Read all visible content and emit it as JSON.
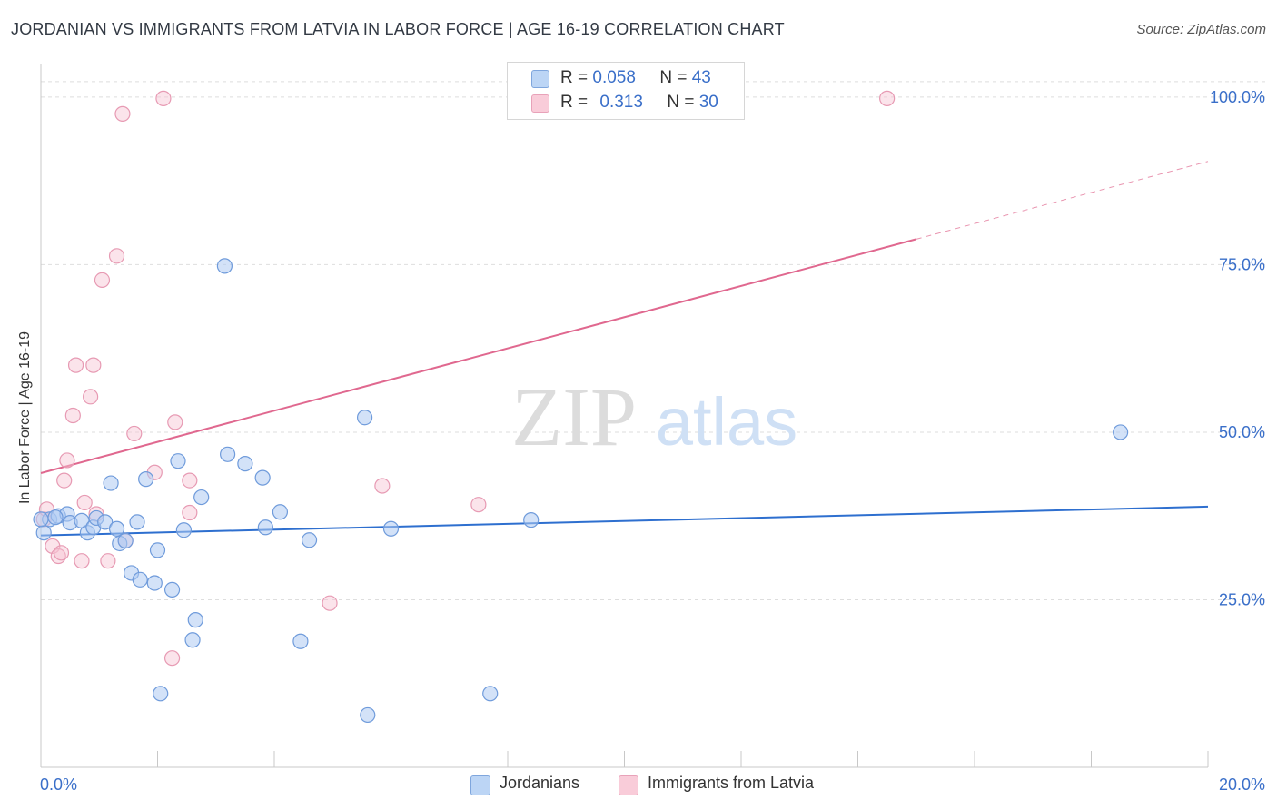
{
  "header": {
    "title": "JORDANIAN VS IMMIGRANTS FROM LATVIA IN LABOR FORCE | AGE 16-19 CORRELATION CHART",
    "source": "Source: ZipAtlas.com"
  },
  "watermark": {
    "zip": "ZIP",
    "atlas": "atlas"
  },
  "legend": {
    "r_label": "R =",
    "n_label": "N =",
    "rows": [
      {
        "r": "0.058",
        "n": "43"
      },
      {
        "r": "0.313",
        "n": "30"
      }
    ]
  },
  "chart_data": {
    "type": "scatter",
    "ylabel": "In Labor Force | Age 16-19",
    "xlim": [
      0,
      20
    ],
    "ylim": [
      0,
      105
    ],
    "x_tick_labels": [
      "0.0%",
      "20.0%"
    ],
    "y_ticks": [
      25,
      50,
      75,
      100
    ],
    "y_tick_labels": [
      "25.0%",
      "50.0%",
      "75.0%",
      "100.0%"
    ],
    "grid": true,
    "legend_position": "top-center",
    "colors": {
      "jordanians_fill": "#aecbf2",
      "jordanians_stroke": "#6f9bdb",
      "jordanians_line": "#2e6fcf",
      "latvia_fill": "#f7c3d2",
      "latvia_stroke": "#e79ab3",
      "latvia_line": "#e0688f",
      "tick_label": "#3a6fc9"
    },
    "series": [
      {
        "name": "Jordanians",
        "trend": {
          "x": [
            0,
            20
          ],
          "y": [
            34.6,
            38.9
          ]
        },
        "points": [
          [
            0.05,
            35.0
          ],
          [
            0.15,
            37.0
          ],
          [
            0.3,
            37.5
          ],
          [
            0.45,
            37.8
          ],
          [
            0.5,
            36.5
          ],
          [
            0.7,
            36.8
          ],
          [
            0.8,
            35.0
          ],
          [
            0.9,
            35.8
          ],
          [
            0.95,
            37.2
          ],
          [
            1.1,
            36.6
          ],
          [
            1.2,
            42.4
          ],
          [
            1.3,
            35.6
          ],
          [
            1.35,
            33.4
          ],
          [
            1.45,
            33.8
          ],
          [
            1.55,
            29.0
          ],
          [
            1.65,
            36.6
          ],
          [
            1.7,
            28.0
          ],
          [
            1.8,
            43.0
          ],
          [
            1.95,
            27.5
          ],
          [
            2.0,
            32.4
          ],
          [
            2.05,
            11.0
          ],
          [
            2.25,
            26.5
          ],
          [
            2.35,
            45.7
          ],
          [
            2.45,
            35.4
          ],
          [
            2.6,
            19.0
          ],
          [
            2.65,
            22.0
          ],
          [
            2.75,
            40.3
          ],
          [
            3.2,
            46.7
          ],
          [
            3.15,
            74.8
          ],
          [
            3.5,
            45.3
          ],
          [
            3.8,
            43.2
          ],
          [
            3.85,
            35.8
          ],
          [
            4.1,
            38.1
          ],
          [
            4.45,
            18.8
          ],
          [
            4.6,
            33.9
          ],
          [
            5.55,
            52.2
          ],
          [
            5.6,
            7.8
          ],
          [
            6.0,
            35.6
          ],
          [
            7.7,
            11.0
          ],
          [
            8.4,
            36.9
          ],
          [
            18.5,
            50.0
          ],
          [
            0.0,
            37.0
          ],
          [
            0.25,
            37.3
          ]
        ]
      },
      {
        "name": "Immigrants from Latvia",
        "trend": {
          "x": [
            0,
            15
          ],
          "y": [
            43.9,
            78.8
          ]
        },
        "trend_dashed": {
          "x": [
            15,
            20
          ],
          "y": [
            78.8,
            90.4
          ]
        },
        "points": [
          [
            0.05,
            37.0
          ],
          [
            0.1,
            38.5
          ],
          [
            0.2,
            33.0
          ],
          [
            0.3,
            31.5
          ],
          [
            0.35,
            32.0
          ],
          [
            0.4,
            42.8
          ],
          [
            0.45,
            45.8
          ],
          [
            0.55,
            52.5
          ],
          [
            0.6,
            60.0
          ],
          [
            0.7,
            30.8
          ],
          [
            0.75,
            39.5
          ],
          [
            0.85,
            55.3
          ],
          [
            0.9,
            60.0
          ],
          [
            0.95,
            37.8
          ],
          [
            1.05,
            72.7
          ],
          [
            1.15,
            30.8
          ],
          [
            1.3,
            76.3
          ],
          [
            1.4,
            97.5
          ],
          [
            1.45,
            33.8
          ],
          [
            1.6,
            49.8
          ],
          [
            2.1,
            99.8
          ],
          [
            1.95,
            44.0
          ],
          [
            2.25,
            16.3
          ],
          [
            2.3,
            51.5
          ],
          [
            2.55,
            42.8
          ],
          [
            2.55,
            38.0
          ],
          [
            4.95,
            24.5
          ],
          [
            5.85,
            42.0
          ],
          [
            7.5,
            39.2
          ],
          [
            14.5,
            99.8
          ]
        ]
      }
    ]
  },
  "bottom_legend": [
    {
      "label": "Jordanians"
    },
    {
      "label": "Immigrants from Latvia"
    }
  ]
}
